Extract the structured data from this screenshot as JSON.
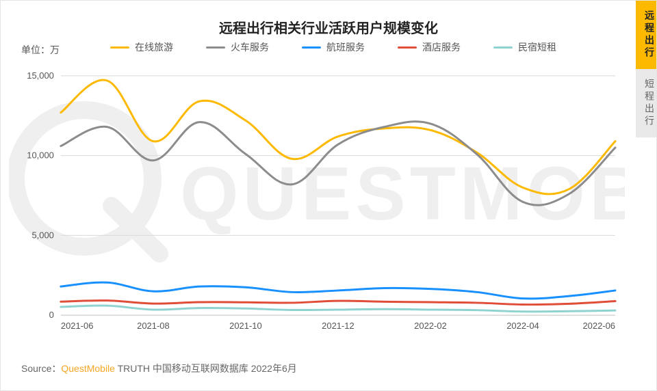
{
  "title": "远程出行相关行业活跃用户规模变化",
  "unit_label": "单位：万",
  "source_prefix": "Source：",
  "source_brand": "QuestMobile",
  "source_suffix": " TRUTH 中国移动互联网数据库 2022年6月",
  "watermark_text": "QUESTMOBILE",
  "side_tabs": [
    {
      "label": "远程出行",
      "active": true
    },
    {
      "label": "短程出行",
      "active": false
    }
  ],
  "chart": {
    "type": "line",
    "background_color": "#ffffff",
    "grid_color": "#d9d9d9",
    "axis_color": "#bfbfbf",
    "label_color": "#555555",
    "label_fontsize": 13,
    "title_fontsize": 20,
    "line_width": 3,
    "smooth": true,
    "y": {
      "min": 0,
      "max": 15000,
      "tick_step": 5000,
      "ticks": [
        0,
        5000,
        10000,
        15000
      ],
      "format": "comma"
    },
    "x": {
      "categories": [
        "2021-06",
        "2021-07",
        "2021-08",
        "2021-09",
        "2021-10",
        "2021-11",
        "2021-12",
        "2022-01",
        "2022-02",
        "2022-03",
        "2022-04",
        "2022-05",
        "2022-06"
      ],
      "tick_labels": [
        "2021-06",
        "2021-08",
        "2021-10",
        "2021-12",
        "2022-02",
        "2022-04",
        "2022-06"
      ],
      "tick_indices": [
        0,
        2,
        4,
        6,
        8,
        10,
        12
      ]
    },
    "legend": {
      "items": [
        "在线旅游",
        "火车服务",
        "航班服务",
        "酒店服务",
        "民宿短租"
      ],
      "dash_width": 28
    },
    "series": [
      {
        "name": "在线旅游",
        "color": "#fcb900",
        "values": [
          12700,
          14700,
          10900,
          13400,
          12200,
          9800,
          11200,
          11700,
          11600,
          10200,
          8000,
          7900,
          10900
        ]
      },
      {
        "name": "火车服务",
        "color": "#8c8c8c",
        "values": [
          10600,
          11800,
          9700,
          12100,
          10100,
          8200,
          10700,
          11800,
          12000,
          10100,
          7100,
          7600,
          10500
        ]
      },
      {
        "name": "航班服务",
        "color": "#1890ff",
        "values": [
          1800,
          2050,
          1500,
          1800,
          1750,
          1450,
          1550,
          1700,
          1650,
          1450,
          1050,
          1200,
          1550
        ]
      },
      {
        "name": "酒店服务",
        "color": "#e04e39",
        "values": [
          850,
          920,
          730,
          820,
          810,
          780,
          900,
          850,
          820,
          780,
          670,
          720,
          880
        ]
      },
      {
        "name": "民宿短租",
        "color": "#8fd3d1",
        "values": [
          520,
          600,
          350,
          450,
          420,
          330,
          350,
          380,
          350,
          320,
          230,
          250,
          300
        ]
      }
    ]
  }
}
